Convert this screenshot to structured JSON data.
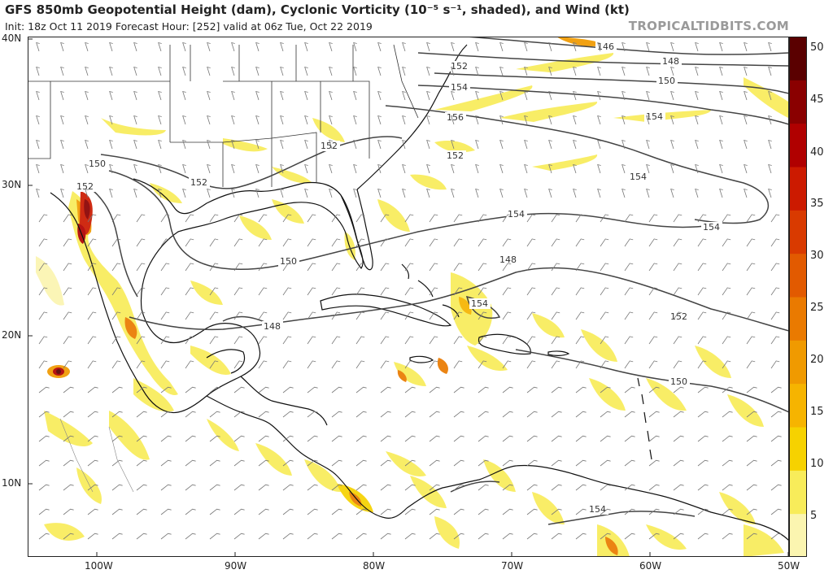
{
  "header": {
    "title": "GFS 850mb Geopotential Height (dam), Cyclonic Vorticity (10⁻⁵ s⁻¹, shaded), and Wind (kt)",
    "subtitle": "Init: 18z Oct 11 2019   Forecast Hour: [252]   valid at 06z Tue, Oct 22 2019",
    "brand": "TROPICALTIDBITS.COM"
  },
  "axes": {
    "lat_labels": [
      "40N",
      "30N",
      "20N",
      "10N"
    ],
    "lon_labels": [
      "100W",
      "90W",
      "80W",
      "70W",
      "60W",
      "50W"
    ]
  },
  "colorbar": {
    "labels": [
      "50",
      "45",
      "40",
      "35",
      "30",
      "25",
      "20",
      "15",
      "10",
      "5"
    ],
    "colors": [
      "#fbf5b0",
      "#f8ec5a",
      "#f6d200",
      "#f6b400",
      "#f09a00",
      "#ea7a00",
      "#e25a00",
      "#d93a00",
      "#cc1a00",
      "#b00000",
      "#8a0000",
      "#5a0000"
    ]
  },
  "map": {
    "contours": [
      "146",
      "148",
      "150",
      "152",
      "154",
      "156",
      "154",
      "152",
      "154",
      "154",
      "154",
      "152",
      "150",
      "152",
      "152",
      "150",
      "148",
      "148",
      "154",
      "152",
      "150",
      "154"
    ],
    "land_color": "#ffffff",
    "coast_color": "#111111",
    "contour_color": "#444444",
    "barb_color": "#777777"
  }
}
